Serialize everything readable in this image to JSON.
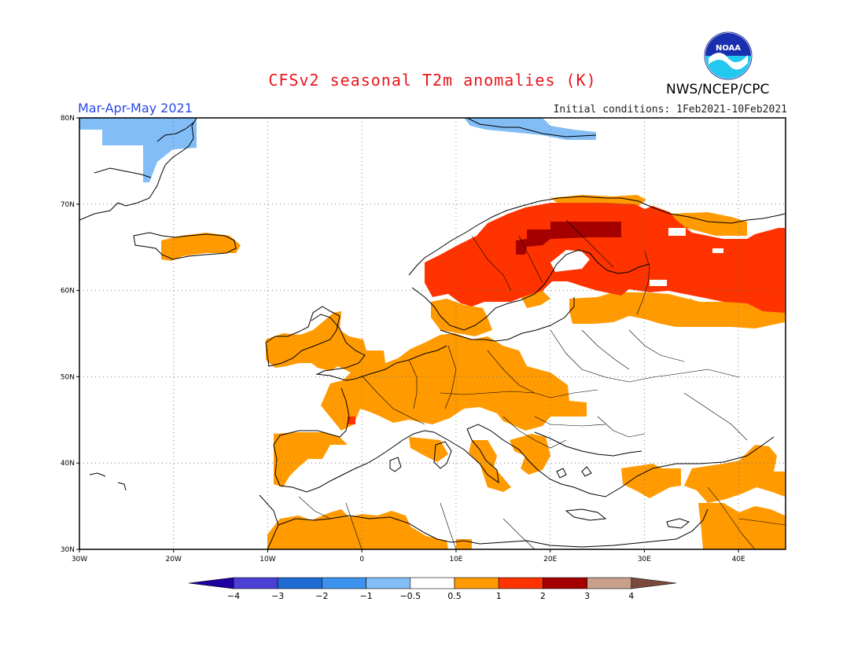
{
  "header": {
    "title": "CFSv2 seasonal T2m anomalies (K)",
    "period": "Mar-Apr-May 2021",
    "initial_conditions": "Initial conditions:  1Feb2021-10Feb2021",
    "agency": "NWS/NCEP/CPC",
    "logo_text": "NOAA"
  },
  "map": {
    "lat_labels": [
      "80N",
      "70N",
      "60N",
      "50N",
      "40N",
      "30N"
    ],
    "lon_labels": [
      "30W",
      "20W",
      "10W",
      "0",
      "10E",
      "20E",
      "30E",
      "40E"
    ],
    "lon_range": [
      -30,
      45
    ],
    "lat_range": [
      30,
      80
    ],
    "grid": true
  },
  "colorbar": {
    "tick_labels": [
      "-4",
      "-3",
      "-2",
      "-1",
      "-0.5",
      "0.5",
      "1",
      "2",
      "3",
      "4"
    ],
    "colors": [
      "#1e00a0",
      "#4b3fd4",
      "#1f6bd6",
      "#3d92ee",
      "#82bdf6",
      "#ffffff",
      "#ff9a00",
      "#ff3300",
      "#a50000",
      "#c8a08c",
      "#7a4a3c"
    ]
  },
  "anomaly_colors": {
    "cold_light": "#82bdf6",
    "warm_orange": "#ff9a00",
    "warm_red": "#ff3300",
    "warm_dark": "#a50000"
  }
}
